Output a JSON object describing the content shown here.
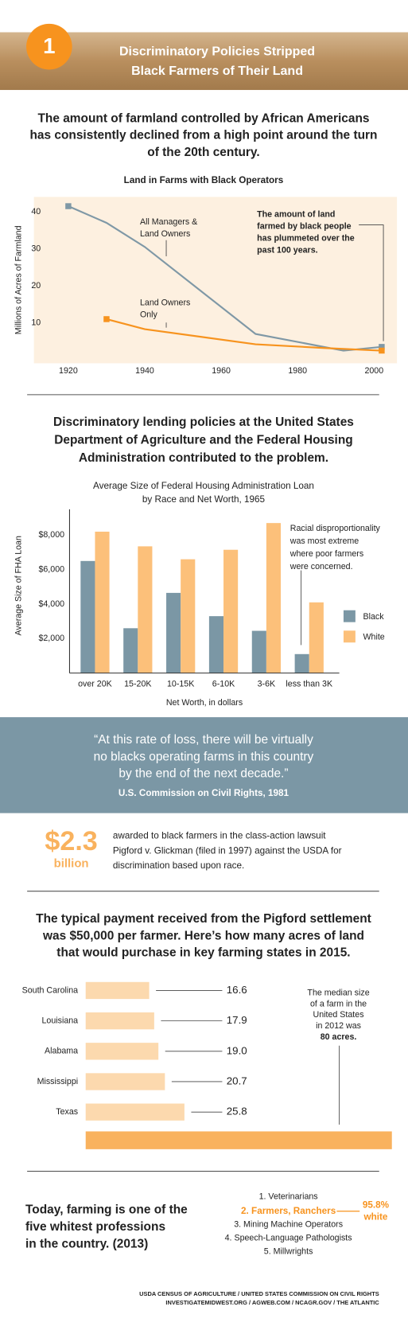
{
  "header": {
    "badge": "1",
    "title": [
      "Discriminatory Policies Stripped",
      "Black Farmers of Their Land"
    ]
  },
  "intro_1": [
    "The amount of farmland controlled by African Americans",
    "has consistently declined from a high point around the turn",
    "of the 20th century."
  ],
  "intro_2": [
    "Discriminatory lending policies at the United States",
    "Department of Agriculture and the Federal Housing",
    "Administration contributed to the problem."
  ],
  "quote": {
    "text": [
      "“At this rate of loss, there will be virtually",
      "no blacks operating farms in this country",
      "by the end of the next decade.”"
    ],
    "source": "U.S. Commission on Civil Rights, 1981"
  },
  "award": {
    "amount": "$2.3",
    "unit": "billion",
    "text": [
      "awarded to black farmers in the class-action lawsuit",
      "Pigford v. Glickman (filed in 1997) against the USDA for",
      "discrimination based upon race."
    ]
  },
  "intro_3": [
    "The typical payment received from the Pigford settlement",
    "was $50,000 per farmer. Here’s how many acres of land",
    "that would purchase in key farming states in 2015."
  ],
  "professions": {
    "headline": [
      "Today, farming is one of the",
      "five whitest professions",
      "in the country. (2013)"
    ],
    "list": [
      "1. Veterinarians",
      "2. Farmers, Ranchers",
      "3. Mining Machine Operators",
      "4. Speech-Language Pathologists",
      "5. Millwrights"
    ],
    "highlight": {
      "value": "95.8%",
      "label": "white"
    }
  },
  "footer": [
    "USDA CENSUS OF AGRICULTURE / UNITED STATES COMMISSION ON CIVIL RIGHTS",
    "INVESTIGATEMIDWEST.ORG / AGWEB.COM / NCAGR.GOV / THE ATLANTIC"
  ],
  "chart_data": [
    {
      "type": "line",
      "title": "Land in Farms with Black Operators",
      "y_label": "Millions of Acres of Farmland",
      "xlim": [
        1911,
        2006
      ],
      "xticks": [
        1920,
        1940,
        1960,
        1980,
        2000
      ],
      "ylim": [
        0,
        44
      ],
      "yticks": [
        10,
        20,
        30,
        40
      ],
      "series": [
        {
          "label": [
            "All Managers &",
            "Land Owners"
          ],
          "color": "#7f98a6",
          "x": [
            1920,
            1930,
            1940,
            1969,
            1992,
            2002
          ],
          "values": [
            41.5,
            37,
            30.5,
            7,
            2.5,
            3.5
          ]
        },
        {
          "label": [
            "Land Owners",
            "Only"
          ],
          "color": "#f7931e",
          "x": [
            1930,
            1940,
            1969,
            1987,
            2002
          ],
          "values": [
            11,
            8.3,
            4.2,
            3.2,
            2.5
          ]
        }
      ],
      "annotation": [
        "The amount of land",
        "farmed by black people",
        "has plummeted over the",
        "past 100 years."
      ]
    },
    {
      "type": "bar",
      "title": [
        "Average Size of Federal Housing Administration Loan",
        "by Race and Net Worth, 1965"
      ],
      "y_label": "Average Size of FHA Loan",
      "x_label": "Net Worth, in dollars",
      "categories": [
        "over 20K",
        "15-20K",
        "10-15K",
        "6-10K",
        "3-6K",
        "less than 3K"
      ],
      "ylim": [
        0,
        9500
      ],
      "yticks": [
        {
          "value": 2000,
          "label": "$2,000"
        },
        {
          "value": 4000,
          "label": "$4,000"
        },
        {
          "value": 6000,
          "label": "$6,000"
        },
        {
          "value": 8000,
          "label": "$8,000"
        }
      ],
      "series": [
        {
          "name": "Black",
          "color": "#7b97a5",
          "values": [
            6500,
            2600,
            4650,
            3300,
            2450,
            1100
          ]
        },
        {
          "name": "White",
          "color": "#fcc07a",
          "values": [
            8200,
            7350,
            6600,
            7150,
            8700,
            4100
          ]
        }
      ],
      "annotation": [
        "Racial disproportionality",
        "was most extreme",
        "where poor farmers",
        "were concerned."
      ]
    },
    {
      "type": "barh",
      "categories": [
        "South Carolina",
        "Louisiana",
        "Alabama",
        "Mississippi",
        "Texas"
      ],
      "values": [
        16.6,
        17.9,
        19,
        20.7,
        25.8
      ],
      "value_labels": [
        "16.6",
        "17.9",
        "19.0",
        "20.7",
        "25.8"
      ],
      "color": "#fcd9ae",
      "reference": {
        "value": 80,
        "label": "80 acres.",
        "color": "#f9b25e"
      },
      "annotation": [
        "The median size",
        "of a farm in the",
        "United States",
        "in 2012 was"
      ]
    }
  ]
}
